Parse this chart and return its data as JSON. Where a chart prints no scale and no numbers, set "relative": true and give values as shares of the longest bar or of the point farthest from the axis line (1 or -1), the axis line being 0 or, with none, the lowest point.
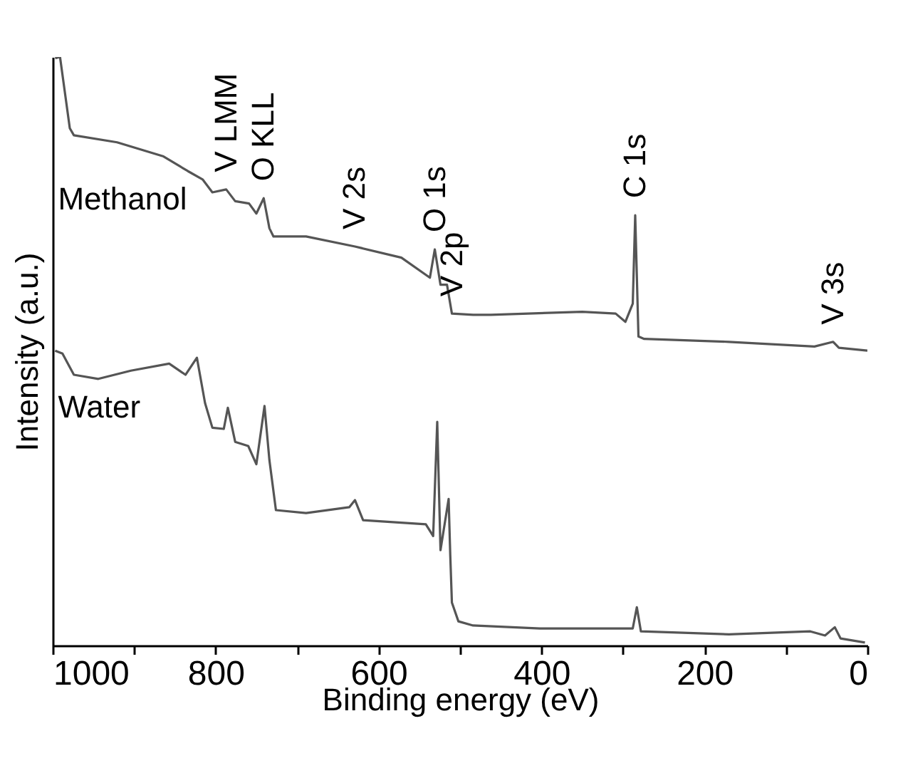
{
  "chart_data": {
    "type": "line",
    "relative": true,
    "xlabel": "Binding energy (eV)",
    "ylabel": "Intensity (a.u.)",
    "xlim": [
      1000,
      0
    ],
    "xticks": [
      1000,
      {
        "value": 900,
        "label": null
      },
      800,
      {
        "value": 700,
        "label": null
      },
      600,
      {
        "value": 500,
        "label": null
      },
      400,
      {
        "value": 300,
        "label": null
      },
      200,
      {
        "value": 100,
        "label": null
      },
      0
    ],
    "series": [
      {
        "name": "Methanol",
        "color": "#555555",
        "x": [
          997,
          991,
          979,
          974,
          921,
          864,
          834,
          816,
          804,
          787,
          776,
          759,
          750,
          741,
          734,
          729,
          689,
          629,
          572,
          537,
          531,
          524,
          516,
          510,
          484,
          462,
          350,
          309,
          297,
          288,
          285,
          281,
          274,
          170,
          65,
          42,
          35,
          0
        ],
        "values": [
          0.998,
          1.0,
          0.879,
          0.867,
          0.855,
          0.831,
          0.806,
          0.792,
          0.77,
          0.775,
          0.755,
          0.751,
          0.734,
          0.76,
          0.709,
          0.695,
          0.695,
          0.678,
          0.659,
          0.625,
          0.673,
          0.613,
          0.613,
          0.564,
          0.562,
          0.562,
          0.567,
          0.564,
          0.55,
          0.581,
          0.731,
          0.525,
          0.521,
          0.516,
          0.508,
          0.516,
          0.506,
          0.501
        ]
      },
      {
        "name": "Water",
        "color": "#555555",
        "x": [
          997,
          988,
          974,
          944,
          904,
          857,
          837,
          823,
          813,
          804,
          790,
          785,
          776,
          760,
          750,
          740,
          734,
          726,
          689,
          636,
          629,
          619,
          542,
          533,
          528,
          524,
          514,
          512,
          510,
          502,
          484,
          402,
          288,
          283,
          278,
          170,
          70,
          52,
          40,
          33,
          3
        ],
        "values": [
          0.501,
          0.496,
          0.46,
          0.453,
          0.467,
          0.479,
          0.46,
          0.489,
          0.412,
          0.37,
          0.368,
          0.404,
          0.346,
          0.339,
          0.308,
          0.407,
          0.315,
          0.23,
          0.225,
          0.235,
          0.247,
          0.213,
          0.206,
          0.186,
          0.38,
          0.162,
          0.249,
          0.153,
          0.073,
          0.041,
          0.034,
          0.029,
          0.029,
          0.065,
          0.024,
          0.019,
          0.024,
          0.017,
          0.031,
          0.012,
          0.005
        ]
      }
    ],
    "annotations": [
      {
        "text": "V LMM",
        "x": 787,
        "y": 0.775
      },
      {
        "text": "O KLL",
        "x": 741,
        "y": 0.76
      },
      {
        "text": "V 2s",
        "x": 629,
        "y": 0.678
      },
      {
        "text": "O 1s",
        "x": 531,
        "y": 0.673
      },
      {
        "text": "V 2p",
        "x": 510,
        "y": 0.564
      },
      {
        "text": "C 1s",
        "x": 285,
        "y": 0.731
      },
      {
        "text": "V 3s",
        "x": 42,
        "y": 0.516
      }
    ]
  }
}
